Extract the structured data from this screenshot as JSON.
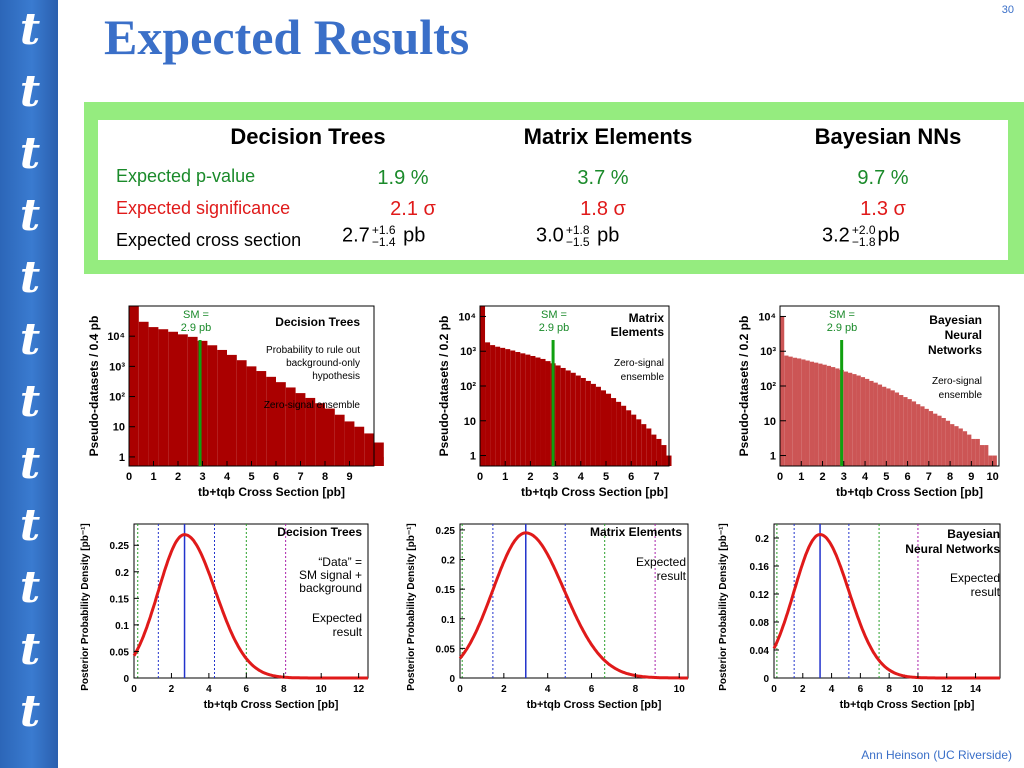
{
  "slide": {
    "title": "Expected Results",
    "number": "30",
    "author": "Ann Heinson   (UC Riverside)",
    "sidebar_glyph": "t",
    "sidebar_count": 12
  },
  "table": {
    "headers": [
      "Decision Trees",
      "Matrix Elements",
      "Bayesian NNs"
    ],
    "rows": [
      {
        "label": "Expected p-value",
        "color": "#1a8a2a",
        "values": [
          "1.9 %",
          "3.7 %",
          "9.7 %"
        ]
      },
      {
        "label": "Expected significance",
        "color": "#e01a1a",
        "values": [
          "2.1 σ",
          "1.8 σ",
          "1.3 σ"
        ]
      }
    ],
    "xsec": {
      "label": "Expected cross section",
      "unit": "pb",
      "values": [
        {
          "central": "2.7",
          "plus": "+1.6",
          "minus": "−1.4"
        },
        {
          "central": "3.0",
          "plus": "+1.8",
          "minus": "−1.5"
        },
        {
          "central": "3.2",
          "plus": "+2.0",
          "minus": "−1.8"
        }
      ]
    }
  },
  "chart_data": [
    {
      "type": "bar",
      "title": "Decision Trees",
      "annotations": [
        "SM =",
        "2.9 pb",
        "Probability to rule out",
        "background-only",
        "hypothesis",
        "Zero-signal ensemble"
      ],
      "xlabel": "tb+tqb Cross Section  [pb]",
      "ylabel": "Pseudo-datasets / 0.4 pb",
      "xlim": [
        0,
        10
      ],
      "ylim": [
        0.5,
        100000
      ],
      "yscale": "log",
      "xticks": [
        "0",
        "1",
        "2",
        "3",
        "4",
        "5",
        "6",
        "7",
        "8",
        "9"
      ],
      "yticks": [
        "1",
        "10",
        "10²",
        "10³",
        "10⁴"
      ],
      "bin_width": 0.4,
      "values": [
        100000,
        30000,
        20000,
        17000,
        14000,
        11500,
        9500,
        7000,
        5000,
        3500,
        2400,
        1600,
        1000,
        700,
        450,
        300,
        200,
        130,
        90,
        60,
        40,
        25,
        15,
        10,
        6,
        3,
        1
      ],
      "sm_line": 2.9,
      "color": "#aa0000"
    },
    {
      "type": "bar",
      "title": "Matrix Elements",
      "annotations": [
        "SM =",
        "2.9 pb",
        "Zero-signal",
        "ensemble"
      ],
      "xlabel": "tb+tqb Cross Section  [pb]",
      "ylabel": "Pseudo-datasets / 0.2 pb",
      "xlim": [
        0,
        7.5
      ],
      "ylim": [
        0.5,
        20000
      ],
      "yscale": "log",
      "xticks": [
        "0",
        "1",
        "2",
        "3",
        "4",
        "5",
        "6",
        "7"
      ],
      "yticks": [
        "1",
        "10",
        "10²",
        "10³",
        "10⁴"
      ],
      "bin_width": 0.2,
      "values": [
        20000,
        1800,
        1500,
        1350,
        1250,
        1150,
        1050,
        950,
        870,
        800,
        730,
        660,
        600,
        520,
        450,
        390,
        330,
        280,
        240,
        200,
        170,
        140,
        115,
        95,
        75,
        60,
        45,
        35,
        27,
        20,
        15,
        11,
        8,
        6,
        4,
        3,
        2,
        1
      ],
      "sm_line": 2.9,
      "color": "#aa0000"
    },
    {
      "type": "bar",
      "title": "Bayesian Neural Networks",
      "annotations": [
        "SM =",
        "2.9 pb",
        "Zero-signal",
        "ensemble"
      ],
      "xlabel": "tb+tqb Cross Section  [pb]",
      "ylabel": "Pseudo-datasets / 0.2 pb",
      "xlim": [
        0,
        10.3
      ],
      "ylim": [
        0.5,
        20000
      ],
      "yscale": "log",
      "xticks": [
        "0",
        "1",
        "2",
        "3",
        "4",
        "5",
        "6",
        "7",
        "8",
        "9",
        "10"
      ],
      "yticks": [
        "1",
        "10",
        "10²",
        "10³",
        "10⁴"
      ],
      "bin_width": 0.2,
      "values": [
        10000,
        750,
        700,
        650,
        620,
        580,
        540,
        500,
        470,
        440,
        410,
        380,
        350,
        320,
        290,
        260,
        240,
        220,
        200,
        180,
        160,
        140,
        125,
        110,
        95,
        85,
        75,
        65,
        55,
        48,
        42,
        36,
        30,
        26,
        22,
        19,
        16,
        14,
        12,
        10,
        8,
        7,
        6,
        5,
        4,
        3,
        3,
        2,
        2,
        1,
        1
      ],
      "sm_line": 2.9,
      "color": "#cc5555"
    },
    {
      "type": "line",
      "title": "Decision Trees",
      "annotations": [
        "“Data” =",
        "SM signal +",
        "background",
        "Expected",
        "result"
      ],
      "xlabel": "tb+tqb Cross Section  [pb]",
      "ylabel": "Posterior Probability Density  [pb⁻¹]",
      "xlim": [
        0,
        12.5
      ],
      "ylim": [
        0,
        0.29
      ],
      "xticks": [
        "0",
        "2",
        "4",
        "6",
        "8",
        "10",
        "12"
      ],
      "yticks": [
        "0",
        "0.05",
        "0.1",
        "0.15",
        "0.2",
        "0.25"
      ],
      "peak": 2.7,
      "sigma_left": 1.4,
      "sigma_right": 1.65,
      "peak_density": 0.27,
      "lines": {
        "peak": 2.7,
        "blue": [
          1.3,
          4.3
        ],
        "green": [
          0.2,
          6.0
        ],
        "violet": [
          8.1
        ]
      }
    },
    {
      "type": "line",
      "title": "Matrix Elements",
      "annotations": [
        "Expected",
        "result"
      ],
      "xlabel": "tb+tqb Cross Section  [pb]",
      "ylabel": "Posterior Probability Density  [pb⁻¹]",
      "xlim": [
        0,
        10.4
      ],
      "ylim": [
        0,
        0.26
      ],
      "xticks": [
        "0",
        "2",
        "4",
        "6",
        "8",
        "10"
      ],
      "yticks": [
        "0",
        "0.05",
        "0.1",
        "0.15",
        "0.2",
        "0.25"
      ],
      "peak": 3.0,
      "sigma_left": 1.5,
      "sigma_right": 1.75,
      "peak_density": 0.245,
      "lines": {
        "peak": 3.0,
        "blue": [
          1.5,
          4.8
        ],
        "green": [
          0.1,
          6.6
        ],
        "violet": [
          8.9
        ]
      }
    },
    {
      "type": "line",
      "title": "Bayesian Neural Networks",
      "annotations": [
        "Expected",
        "result"
      ],
      "xlabel": "tb+tqb Cross Section  [pb]",
      "ylabel": "Posterior Probability Density  [pb⁻¹]",
      "xlim": [
        0,
        15.7
      ],
      "ylim": [
        0,
        0.22
      ],
      "xticks": [
        "0",
        "2",
        "4",
        "6",
        "8",
        "10",
        "12",
        "14"
      ],
      "yticks": [
        "0",
        "0.04",
        "0.08",
        "0.12",
        "0.16",
        "0.2"
      ],
      "peak": 3.2,
      "sigma_left": 1.8,
      "sigma_right": 2.0,
      "peak_density": 0.205,
      "lines": {
        "peak": 3.2,
        "blue": [
          1.4,
          5.2
        ],
        "green": [
          0.2,
          7.3
        ],
        "violet": [
          10.0
        ]
      }
    }
  ]
}
